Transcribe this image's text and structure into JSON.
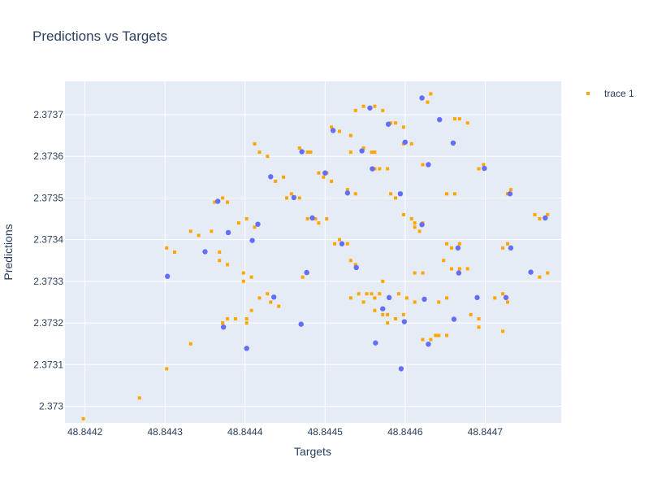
{
  "chart_data": {
    "type": "scatter",
    "title": "Predictions vs Targets",
    "xlabel": "Targets",
    "ylabel": "Predictions",
    "xlim": [
      48.844175,
      48.844795
    ],
    "ylim": [
      2.37296,
      2.37378
    ],
    "x_ticks": [
      48.8442,
      48.8443,
      48.8444,
      48.8445,
      48.8446,
      48.8447
    ],
    "x_tick_labels": [
      "48.8442",
      "48.8443",
      "48.8444",
      "48.8445",
      "48.8446",
      "48.8447"
    ],
    "y_ticks": [
      2.373,
      2.3731,
      2.3732,
      2.3733,
      2.3734,
      2.3735,
      2.3736,
      2.3737
    ],
    "y_tick_labels": [
      "2.373",
      "2.3731",
      "2.3732",
      "2.3733",
      "2.3734",
      "2.3735",
      "2.3736",
      "2.3737"
    ],
    "grid": true,
    "legend_position": "top-right",
    "colors": {
      "plot_bg": "#e5ecf6",
      "grid": "#ffffff",
      "predictions": "#ffa500",
      "targets": "#636efa",
      "text": "#2a3f5f"
    },
    "series": [
      {
        "name": "trace 1",
        "marker": "square",
        "color": "#ffa500",
        "x": [
          48.844538,
          48.844548,
          48.844562,
          48.844572,
          48.844622,
          48.844632,
          48.844628,
          48.844582,
          48.844588,
          48.844598,
          48.844662,
          48.844668,
          48.844678,
          48.844508,
          48.844518,
          48.844532,
          48.844598,
          48.844608,
          48.844468,
          48.844478,
          48.844482,
          48.844548,
          48.844558,
          48.844562,
          48.844432,
          48.844438,
          48.844448,
          48.844622,
          48.844628,
          48.844692,
          48.844698,
          48.844492,
          48.844502,
          48.844498,
          48.844508,
          48.844412,
          48.844418,
          48.844428,
          48.844562,
          48.844568,
          48.844578,
          48.844582,
          48.844588,
          48.844652,
          48.844662,
          48.844728,
          48.844732,
          48.844362,
          48.844372,
          48.844378,
          48.844778,
          48.844768,
          48.844762,
          48.844452,
          48.844458,
          48.844468,
          48.844612,
          48.844622,
          48.844612,
          48.844618,
          48.844392,
          48.844402,
          48.844412,
          48.844478,
          48.844488,
          48.844492,
          48.844502,
          48.844598,
          48.844608,
          48.844528,
          48.844538,
          48.844652,
          48.844658,
          48.844668,
          48.844722,
          48.844728,
          48.844732,
          48.844332,
          48.844342,
          48.844358,
          48.844368,
          48.844302,
          48.844312,
          48.844368,
          48.844378,
          48.844398,
          48.844398,
          48.844408,
          48.844512,
          48.844518,
          48.844528,
          48.844532,
          48.844538,
          48.844658,
          48.844668,
          48.844678,
          48.844768,
          48.844778,
          48.844472,
          48.844478,
          48.844548,
          48.844558,
          48.844572,
          48.844592,
          48.844602,
          48.844612,
          48.844532,
          48.844542,
          48.844642,
          48.844652,
          48.844612,
          48.844622,
          48.844682,
          48.844692,
          48.844418,
          48.844428,
          48.844432,
          48.844562,
          48.844572,
          48.844578,
          48.844712,
          48.844722,
          48.844728,
          48.844552,
          48.844562,
          48.844568,
          48.844372,
          48.844378,
          48.844388,
          48.844402,
          48.844408,
          48.844578,
          48.844588,
          48.844598,
          48.844622,
          48.844632,
          48.844638,
          48.844642,
          48.844652,
          48.844372,
          48.844402,
          48.844198,
          48.844268,
          48.844302,
          48.844332,
          48.844442,
          48.844532,
          48.844648,
          48.844692,
          48.844722
        ],
        "y": [
          2.37371,
          2.37372,
          2.37372,
          2.37371,
          2.37374,
          2.37375,
          2.37373,
          2.37368,
          2.37368,
          2.37367,
          2.37369,
          2.37369,
          2.37368,
          2.37367,
          2.37366,
          2.37365,
          2.37363,
          2.37363,
          2.37362,
          2.37361,
          2.37361,
          2.37362,
          2.37361,
          2.37361,
          2.37355,
          2.37354,
          2.37355,
          2.37358,
          2.37358,
          2.37357,
          2.37358,
          2.37356,
          2.37356,
          2.37355,
          2.37354,
          2.37363,
          2.37361,
          2.3736,
          2.37357,
          2.37357,
          2.37357,
          2.37351,
          2.3735,
          2.37351,
          2.37351,
          2.37351,
          2.37352,
          2.37349,
          2.3735,
          2.37349,
          2.37346,
          2.37345,
          2.37346,
          2.3735,
          2.37351,
          2.3735,
          2.37344,
          2.37344,
          2.37343,
          2.37342,
          2.37344,
          2.37345,
          2.37343,
          2.37345,
          2.37345,
          2.37344,
          2.37345,
          2.37346,
          2.37345,
          2.37352,
          2.37351,
          2.37339,
          2.37338,
          2.37339,
          2.37338,
          2.37339,
          2.37338,
          2.37342,
          2.37341,
          2.37342,
          2.37337,
          2.37338,
          2.37337,
          2.37335,
          2.37334,
          2.37332,
          2.3733,
          2.37331,
          2.37339,
          2.3734,
          2.37339,
          2.37335,
          2.37334,
          2.37333,
          2.37333,
          2.37333,
          2.37331,
          2.37332,
          2.37331,
          2.37332,
          2.37325,
          2.37327,
          2.3733,
          2.37327,
          2.37326,
          2.37325,
          2.37326,
          2.37327,
          2.37325,
          2.37326,
          2.37332,
          2.37332,
          2.37322,
          2.37321,
          2.37326,
          2.37327,
          2.37325,
          2.37323,
          2.37322,
          2.37322,
          2.37326,
          2.37327,
          2.37325,
          2.37327,
          2.37326,
          2.37327,
          2.3732,
          2.37321,
          2.37321,
          2.37321,
          2.37323,
          2.3732,
          2.37321,
          2.37322,
          2.37316,
          2.37316,
          2.37317,
          2.37317,
          2.37317,
          2.3732,
          2.3732,
          2.37297,
          2.37302,
          2.37309,
          2.37315,
          2.37324,
          2.37361,
          2.37335,
          2.37319,
          2.37318
        ]
      },
      {
        "marker": "circle",
        "color": "#636efa",
        "x": [
          48.844556,
          48.844621,
          48.844643,
          48.844579,
          48.84451,
          48.8446,
          48.844471,
          48.844546,
          48.844629,
          48.844699,
          48.844432,
          48.8445,
          48.844559,
          48.84466,
          48.844731,
          48.844366,
          48.844775,
          48.844461,
          48.844621,
          48.844416,
          48.844484,
          48.844594,
          48.844528,
          48.844666,
          48.844732,
          48.844379,
          48.84435,
          48.844303,
          48.844409,
          48.844521,
          48.844539,
          48.844667,
          48.844757,
          48.844477,
          48.84458,
          48.844624,
          48.84469,
          48.844436,
          48.844572,
          48.844726,
          48.844563,
          48.844373,
          48.844402,
          48.84447,
          48.844599,
          48.844661,
          48.844629,
          48.844595
        ],
        "y": [
          2.373716,
          2.37374,
          2.373688,
          2.373677,
          2.373662,
          2.373634,
          2.373611,
          2.373613,
          2.37358,
          2.373571,
          2.373551,
          2.37356,
          2.37357,
          2.373632,
          2.37351,
          2.373492,
          2.373452,
          2.373501,
          2.373436,
          2.373437,
          2.373452,
          2.37351,
          2.373512,
          2.37338,
          2.37338,
          2.373417,
          2.373371,
          2.373312,
          2.373398,
          2.37339,
          2.373333,
          2.37332,
          2.373322,
          2.373321,
          2.373261,
          2.373257,
          2.373261,
          2.373262,
          2.373234,
          2.373261,
          2.373152,
          2.37319,
          2.373139,
          2.373197,
          2.373203,
          2.373209,
          2.373149,
          2.37309
        ]
      }
    ]
  }
}
